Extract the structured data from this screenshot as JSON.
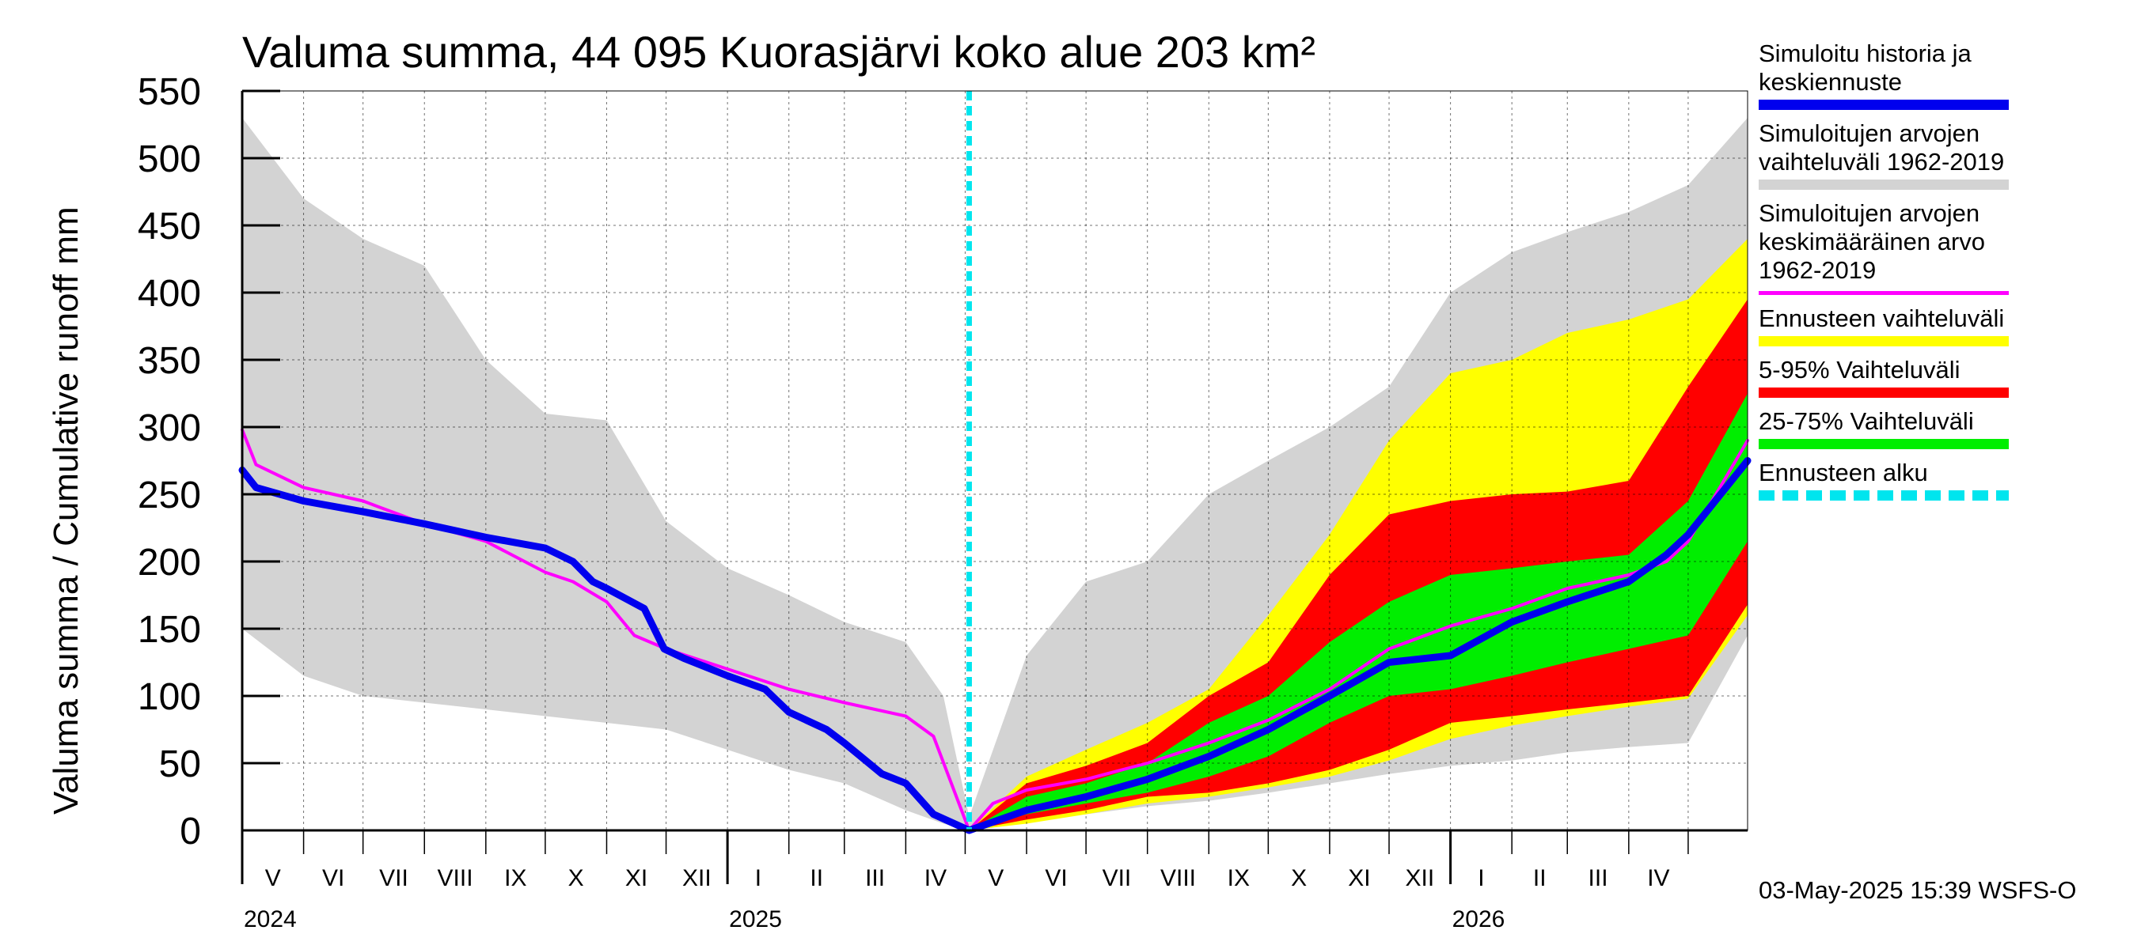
{
  "chart_data": {
    "type": "area",
    "title": "Valuma summa, 44 095 Kuorasjärvi koko alue 203 km²",
    "ylabel": "Valuma summa / Cumulative runoff    mm",
    "ylim": [
      0,
      550
    ],
    "yticks": [
      0,
      50,
      100,
      150,
      200,
      250,
      300,
      350,
      400,
      450,
      500,
      550
    ],
    "x_start": "2024-05-01",
    "x_end": "2026-05-31",
    "forecast_start": "2025-05-03",
    "month_labels": [
      "V",
      "VI",
      "VII",
      "VIII",
      "IX",
      "X",
      "XI",
      "XII",
      "I",
      "II",
      "III",
      "IV",
      "V",
      "VI",
      "VII",
      "VIII",
      "IX",
      "X",
      "XI",
      "XII",
      "I",
      "II",
      "III",
      "IV"
    ],
    "year_labels": [
      {
        "label": "2024",
        "date": "2024-05-01"
      },
      {
        "label": "2025",
        "date": "2025-01-01"
      },
      {
        "label": "2026",
        "date": "2026-01-01"
      }
    ],
    "colors": {
      "history": "#0000ee",
      "hist_range": "#d3d3d3",
      "mean": "#ff00ff",
      "forecast_range": "#ffff00",
      "p5_95": "#ff0000",
      "p25_75": "#00ee00",
      "forecast_start": "#00e5ee"
    },
    "series": [
      {
        "name": "hist_range",
        "x": [
          "2024-05-01",
          "2024-06-01",
          "2024-07-01",
          "2024-08-01",
          "2024-09-01",
          "2024-10-01",
          "2024-11-01",
          "2024-12-01",
          "2025-01-01",
          "2025-02-01",
          "2025-03-01",
          "2025-04-01",
          "2025-04-20",
          "2025-05-03",
          "2025-06-01",
          "2025-07-01",
          "2025-08-01",
          "2025-09-01",
          "2025-10-01",
          "2025-11-01",
          "2025-12-01",
          "2026-01-01",
          "2026-02-01",
          "2026-03-01",
          "2026-04-01",
          "2026-05-01",
          "2026-05-31"
        ],
        "upper": [
          530,
          470,
          440,
          420,
          350,
          310,
          305,
          230,
          195,
          175,
          155,
          140,
          100,
          10,
          130,
          185,
          200,
          250,
          275,
          300,
          330,
          400,
          430,
          445,
          460,
          480,
          530
        ],
        "lower": [
          150,
          115,
          100,
          95,
          90,
          85,
          80,
          75,
          60,
          45,
          35,
          15,
          5,
          0,
          8,
          12,
          18,
          22,
          28,
          35,
          42,
          48,
          52,
          58,
          62,
          65,
          145
        ]
      },
      {
        "name": "forecast_range",
        "x": [
          "2025-05-03",
          "2025-06-01",
          "2025-07-01",
          "2025-08-01",
          "2025-09-01",
          "2025-10-01",
          "2025-11-01",
          "2025-12-01",
          "2026-01-01",
          "2026-02-01",
          "2026-03-01",
          "2026-04-01",
          "2026-05-01",
          "2026-05-31"
        ],
        "upper": [
          0,
          40,
          60,
          80,
          105,
          160,
          220,
          290,
          340,
          350,
          370,
          380,
          395,
          440
        ],
        "lower": [
          0,
          5,
          12,
          20,
          25,
          32,
          40,
          52,
          68,
          78,
          85,
          92,
          98,
          160
        ]
      },
      {
        "name": "p5_95",
        "x": [
          "2025-05-03",
          "2025-06-01",
          "2025-07-01",
          "2025-08-01",
          "2025-09-01",
          "2025-10-01",
          "2025-11-01",
          "2025-12-01",
          "2026-01-01",
          "2026-02-01",
          "2026-03-01",
          "2026-04-01",
          "2026-05-01",
          "2026-05-31"
        ],
        "upper": [
          0,
          35,
          48,
          65,
          100,
          125,
          190,
          235,
          245,
          250,
          252,
          260,
          330,
          395
        ],
        "lower": [
          0,
          8,
          15,
          25,
          28,
          35,
          45,
          60,
          80,
          85,
          90,
          95,
          100,
          168
        ]
      },
      {
        "name": "p25_75",
        "x": [
          "2025-05-03",
          "2025-06-01",
          "2025-07-01",
          "2025-08-01",
          "2025-09-01",
          "2025-10-01",
          "2025-11-01",
          "2025-12-01",
          "2026-01-01",
          "2026-02-01",
          "2026-03-01",
          "2026-04-01",
          "2026-05-01",
          "2026-05-31"
        ],
        "upper": [
          0,
          25,
          35,
          50,
          80,
          100,
          140,
          170,
          190,
          195,
          200,
          205,
          245,
          325
        ],
        "lower": [
          0,
          12,
          20,
          28,
          40,
          55,
          80,
          100,
          105,
          115,
          125,
          135,
          145,
          215
        ]
      },
      {
        "name": "Simuloitujen arvojen keskimääräinen arvo",
        "x": [
          "2024-05-01",
          "2024-05-08",
          "2024-06-01",
          "2024-07-01",
          "2024-07-10",
          "2024-08-01",
          "2024-09-01",
          "2024-10-01",
          "2024-10-15",
          "2024-11-01",
          "2024-11-15",
          "2024-12-01",
          "2025-01-01",
          "2025-02-01",
          "2025-03-01",
          "2025-04-01",
          "2025-04-15",
          "2025-05-03",
          "2025-05-15",
          "2025-06-01",
          "2025-07-01",
          "2025-08-01",
          "2025-09-01",
          "2025-10-01",
          "2025-11-01",
          "2025-12-01",
          "2026-01-01",
          "2026-02-01",
          "2026-03-01",
          "2026-04-01",
          "2026-04-20",
          "2026-05-01",
          "2026-05-31"
        ],
        "values": [
          298,
          272,
          255,
          245,
          240,
          228,
          215,
          192,
          185,
          170,
          145,
          135,
          120,
          105,
          95,
          85,
          70,
          0,
          20,
          30,
          38,
          50,
          65,
          82,
          105,
          135,
          152,
          165,
          180,
          190,
          200,
          215,
          290
        ]
      },
      {
        "name": "Simuloitu historia ja keskiennuste",
        "x": [
          "2024-05-01",
          "2024-05-08",
          "2024-06-01",
          "2024-07-01",
          "2024-08-01",
          "2024-09-01",
          "2024-10-01",
          "2024-10-15",
          "2024-10-25",
          "2024-11-01",
          "2024-11-20",
          "2024-11-30",
          "2024-12-10",
          "2025-01-01",
          "2025-01-20",
          "2025-02-01",
          "2025-02-20",
          "2025-03-01",
          "2025-03-20",
          "2025-04-01",
          "2025-04-15",
          "2025-05-03",
          "2025-06-01",
          "2025-07-01",
          "2025-08-01",
          "2025-09-01",
          "2025-10-01",
          "2025-11-01",
          "2025-12-01",
          "2026-01-01",
          "2026-02-01",
          "2026-03-01",
          "2026-04-01",
          "2026-04-20",
          "2026-05-01",
          "2026-05-31"
        ],
        "values": [
          268,
          255,
          245,
          237,
          228,
          218,
          210,
          200,
          185,
          180,
          165,
          135,
          128,
          115,
          105,
          88,
          75,
          65,
          42,
          35,
          12,
          0,
          15,
          25,
          38,
          55,
          75,
          100,
          125,
          130,
          155,
          170,
          185,
          205,
          220,
          275
        ]
      }
    ]
  },
  "legend": {
    "items": [
      {
        "label": "Simuloitu historia ja\nkeskiennuste",
        "color": "#0000ee",
        "style": "solid"
      },
      {
        "label": "Simuloitujen arvojen\nvaihteluväli 1962-2019",
        "color": "#d3d3d3",
        "style": "solid"
      },
      {
        "label": "Simuloitujen arvojen\nkeskimääräinen arvo\n    1962-2019",
        "color": "#ff00ff",
        "style": "thin"
      },
      {
        "label": "Ennusteen vaihteluväli",
        "color": "#ffff00",
        "style": "solid"
      },
      {
        "label": "5-95% Vaihteluväli",
        "color": "#ff0000",
        "style": "solid"
      },
      {
        "label": "25-75% Vaihteluväli",
        "color": "#00ee00",
        "style": "solid"
      },
      {
        "label": "Ennusteen alku",
        "color": "#00e5ee",
        "style": "dashed"
      }
    ]
  },
  "footer": {
    "timestamp": "03-May-2025 15:39 WSFS-O"
  }
}
